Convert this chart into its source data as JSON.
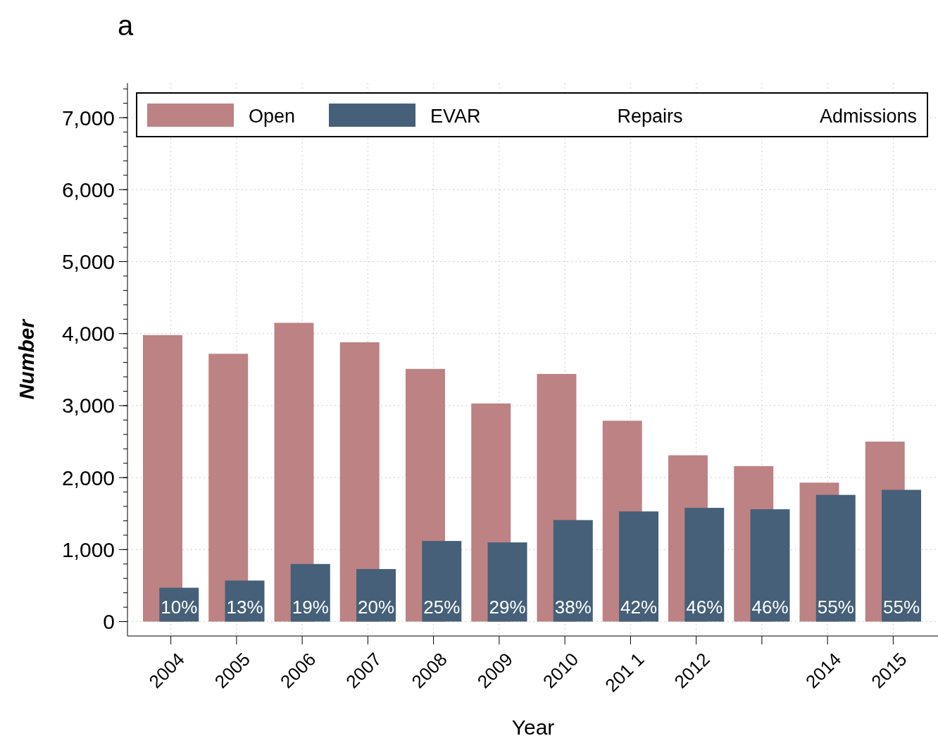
{
  "chart_data": {
    "type": "bar",
    "title": "a",
    "xlabel": "Year",
    "ylabel": "Number",
    "categories": [
      "2004",
      "2005",
      "2006",
      "2007",
      "2008",
      "2009",
      "2010",
      "201 1",
      "2012",
      null,
      "2014",
      "2015"
    ],
    "series": [
      {
        "name": "Open",
        "color": "#bc8284",
        "values": [
          3980,
          3720,
          4150,
          3880,
          3510,
          3030,
          3440,
          2790,
          2310,
          2160,
          1930,
          2500
        ]
      },
      {
        "name": "EVAR",
        "color": "#456078",
        "values": [
          470,
          570,
          800,
          730,
          1120,
          1100,
          1410,
          1530,
          1580,
          1560,
          1760,
          1830
        ]
      }
    ],
    "annotations": [
      "Repairs",
      "Admissions",
      {
        "text": "10%",
        "x": "2004",
        "y": 0
      },
      {
        "text": "13%",
        "x": "2005",
        "y": 0
      },
      {
        "text": "19%",
        "x": "2006",
        "y": 0
      },
      {
        "text": "20%",
        "x": "2007",
        "y": 0
      },
      {
        "text": "25%",
        "x": "2008",
        "y": 0
      },
      {
        "text": "29%",
        "x": "2009",
        "y": 0
      },
      {
        "text": "38%",
        "x": "2010",
        "y": 0
      },
      {
        "text": "42%",
        "x": "201 1",
        "y": 0
      },
      {
        "text": "46%",
        "x": "2012",
        "y": 0
      },
      {
        "text": "46%",
        "y": 0
      },
      {
        "text": "55%",
        "x": "2014",
        "y": 0
      },
      {
        "text": "55%",
        "x": "2015",
        "y": 0
      }
    ],
    "ylim": [
      -200,
      7480
    ],
    "yticks": [
      {
        "value": 0,
        "label": "0"
      },
      {
        "value": 1000,
        "label": "1,000"
      },
      {
        "value": 2000,
        "label": "2,000"
      },
      {
        "value": 3000,
        "label": "3,000"
      },
      {
        "value": 4000,
        "label": "4,000"
      },
      {
        "value": 5000,
        "label": "5,000"
      },
      {
        "value": 6000,
        "label": "6,000"
      },
      {
        "value": 7000,
        "label": "7,000"
      }
    ],
    "grid": true,
    "legend": "top"
  }
}
